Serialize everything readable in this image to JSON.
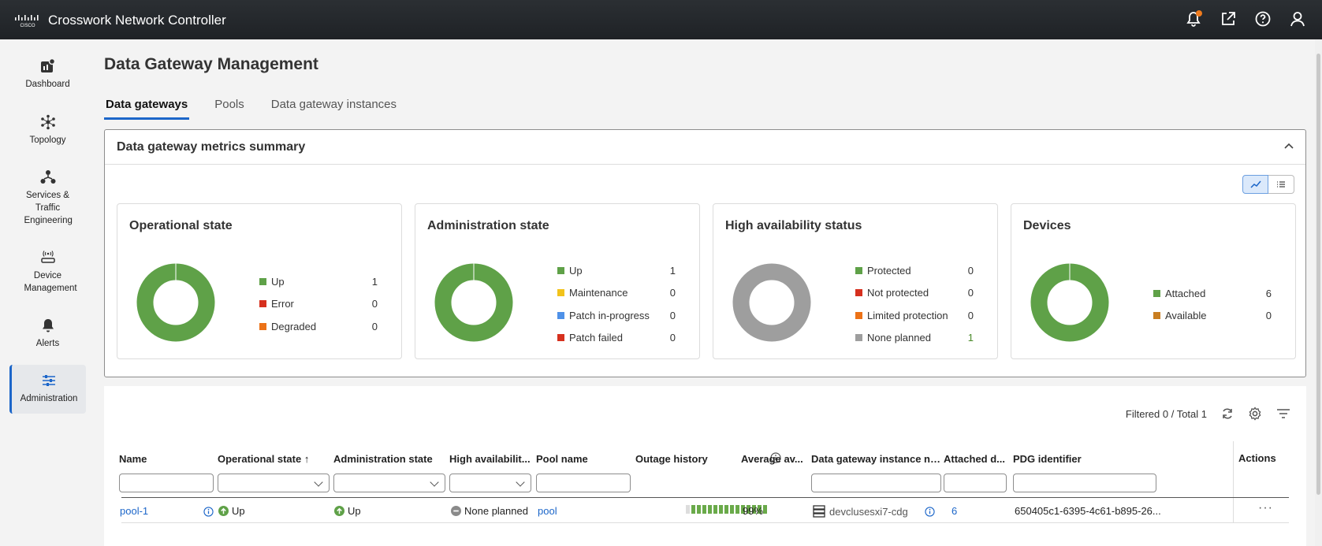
{
  "app": {
    "title": "Crosswork Network Controller"
  },
  "sidebar": {
    "items": [
      {
        "label": "Dashboard"
      },
      {
        "label": "Topology"
      },
      {
        "label": "Services & Traffic Engineering"
      },
      {
        "label": "Device Management"
      },
      {
        "label": "Alerts"
      },
      {
        "label": "Administration"
      }
    ]
  },
  "page": {
    "title": "Data Gateway Management",
    "tabs": [
      "Data gateways",
      "Pools",
      "Data gateway instances"
    ]
  },
  "summary": {
    "title": "Data gateway metrics summary",
    "cards": [
      {
        "title": "Operational state",
        "legend": [
          {
            "label": "Up",
            "value": "1",
            "color": "#5fa148"
          },
          {
            "label": "Error",
            "value": "0",
            "color": "#d6301e"
          },
          {
            "label": "Degraded",
            "value": "0",
            "color": "#ec7217"
          }
        ]
      },
      {
        "title": "Administration state",
        "legend": [
          {
            "label": "Up",
            "value": "1",
            "color": "#5fa148"
          },
          {
            "label": "Maintenance",
            "value": "0",
            "color": "#f2c31b"
          },
          {
            "label": "Patch in-progress",
            "value": "0",
            "color": "#4f91e8"
          },
          {
            "label": "Patch failed",
            "value": "0",
            "color": "#d6301e"
          }
        ]
      },
      {
        "title": "High availability status",
        "legend": [
          {
            "label": "Protected",
            "value": "0",
            "color": "#5fa148"
          },
          {
            "label": "Not protected",
            "value": "0",
            "color": "#d6301e"
          },
          {
            "label": "Limited protection",
            "value": "0",
            "color": "#ec7217"
          },
          {
            "label": "None planned",
            "value": "1",
            "color": "#9e9e9e"
          }
        ]
      },
      {
        "title": "Devices",
        "legend": [
          {
            "label": "Attached",
            "value": "6",
            "color": "#5fa148"
          },
          {
            "label": "Available",
            "value": "0",
            "color": "#c97e20"
          }
        ]
      }
    ]
  },
  "table": {
    "filter_text": "Filtered 0 / Total 1",
    "columns": [
      "Name",
      "Operational state",
      "Administration state",
      "High availabilit...",
      "Pool name",
      "Outage history",
      "Average av...",
      "Data gateway instance na...",
      "Attached d...",
      "PDG identifier",
      "Actions"
    ],
    "sort_indicator": "↑",
    "rows": [
      {
        "name": "pool-1",
        "operational_state": "Up",
        "administration_state": "Up",
        "high_availability": "None planned",
        "pool_name": "pool",
        "average_availability": "99%",
        "instance_name": "devclusesxi7-cdg",
        "attached_devices": "6",
        "pdg_identifier": "650405c1-6395-4c61-b895-26...",
        "actions": "···"
      }
    ]
  },
  "colors": {
    "accent": "#1c66c9",
    "up": "#5fa148",
    "none_planned": "#9e9e9e"
  }
}
